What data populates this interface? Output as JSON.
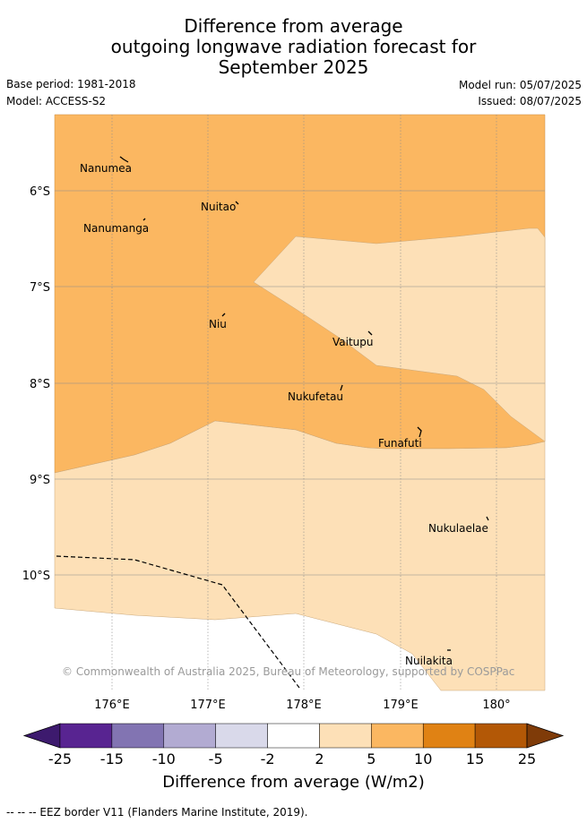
{
  "header": {
    "title_line1": "Difference from average",
    "title_line2": "outgoing longwave radiation forecast for",
    "title_line3": "September 2025",
    "base_period": "Base period: 1981-2018",
    "model": "Model: ACCESS-S2",
    "model_run": "Model run: 05/07/2025",
    "issued": "Issued: 08/07/2025"
  },
  "map": {
    "lat_labels": [
      "6°S",
      "7°S",
      "8°S",
      "9°S",
      "10°S"
    ],
    "lon_labels": [
      "176°E",
      "177°E",
      "178°E",
      "179°E",
      "180°"
    ],
    "islands": [
      "Nanumea",
      "Nuitao",
      "Nanumanga",
      "Niu",
      "Vaitupu",
      "Nukufetau",
      "Funafuti",
      "Nukulaelae",
      "Nuilakita"
    ],
    "copyright": "© Commonwealth of Australia 2025, Bureau of Meteorology, supported by COSPPac",
    "colors": {
      "band_5_10": "#fbb761",
      "band_2_5": "#fde0b7",
      "no_data": "#ffffff",
      "grid": "#999999"
    }
  },
  "colorbar": {
    "ticks": [
      "-25",
      "-15",
      "-10",
      "-5",
      "-2",
      "2",
      "5",
      "10",
      "15",
      "25"
    ],
    "colors": [
      "#3d1a6e",
      "#582491",
      "#8274b2",
      "#b2abd2",
      "#d9d9ea",
      "#ffffff",
      "#fde0b7",
      "#fbb761",
      "#e08214",
      "#b35806",
      "#7f3b08"
    ],
    "title": "Difference from average (W/m2)"
  },
  "footer": {
    "legend": "-- -- -- EEZ border V11 (Flanders Marine Institute, 2019)."
  }
}
